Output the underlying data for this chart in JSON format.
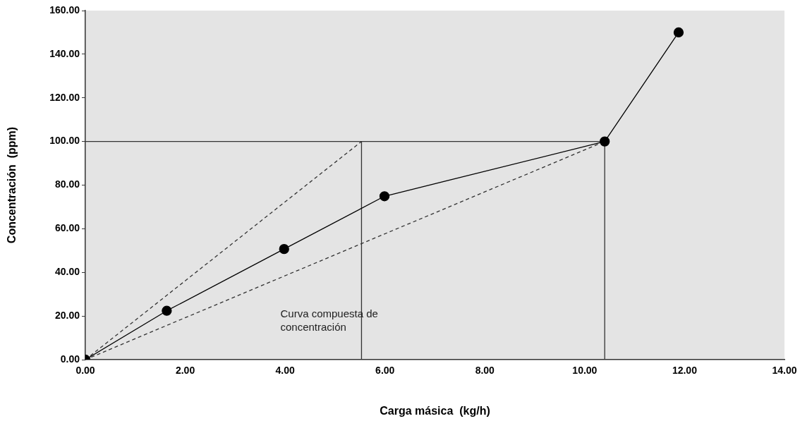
{
  "chart_data": {
    "type": "line",
    "xlabel": "Carga másica  (kg/h)",
    "ylabel": "Concentración  (ppm)",
    "xlim": [
      0,
      14
    ],
    "ylim": [
      0,
      160
    ],
    "xticks": [
      {
        "value": 0,
        "label": "0.00"
      },
      {
        "value": 2,
        "label": "2.00"
      },
      {
        "value": 4,
        "label": "4.00"
      },
      {
        "value": 6,
        "label": "6.00"
      },
      {
        "value": 8,
        "label": "8.00"
      },
      {
        "value": 10,
        "label": "10.00"
      },
      {
        "value": 12,
        "label": "12.00"
      },
      {
        "value": 14,
        "label": "14.00"
      }
    ],
    "yticks": [
      {
        "value": 0,
        "label": "0.00"
      },
      {
        "value": 20,
        "label": "20.00"
      },
      {
        "value": 40,
        "label": "40.00"
      },
      {
        "value": 60,
        "label": "60.00"
      },
      {
        "value": 80,
        "label": "80.00"
      },
      {
        "value": 100,
        "label": "100.00"
      },
      {
        "value": 120,
        "label": "120.00"
      },
      {
        "value": 140,
        "label": "140.00"
      },
      {
        "value": 160,
        "label": "160.00"
      }
    ],
    "grid": false,
    "legend": false,
    "series": [
      {
        "color": "#000000",
        "marker": "circle",
        "line_style": "solid",
        "x": [
          0,
          1.63,
          3.98,
          5.99,
          10.4,
          11.88
        ],
        "values": [
          0,
          22.4,
          50.7,
          74.9,
          100,
          150
        ]
      },
      {
        "type": "line",
        "color": "#333333",
        "marker": "none",
        "line_style": "dashed",
        "x": [
          0,
          5.53
        ],
        "values": [
          0,
          100
        ]
      },
      {
        "type": "line",
        "color": "#333333",
        "marker": "none",
        "line_style": "dashed",
        "x": [
          0,
          10.4
        ],
        "values": [
          0,
          100
        ]
      },
      {
        "type": "line",
        "color": "#333333",
        "marker": "none",
        "line_style": "solid",
        "x": [
          0,
          10.4
        ],
        "values": [
          100,
          100
        ]
      },
      {
        "type": "line",
        "color": "#333333",
        "marker": "none",
        "line_style": "solid",
        "x": [
          5.53,
          5.53
        ],
        "values": [
          0,
          100
        ]
      },
      {
        "type": "line",
        "color": "#333333",
        "marker": "none",
        "line_style": "solid",
        "x": [
          10.4,
          10.4
        ],
        "values": [
          0,
          100
        ]
      }
    ],
    "annotations": [
      "Curva compuesta de\nconcentración"
    ]
  }
}
